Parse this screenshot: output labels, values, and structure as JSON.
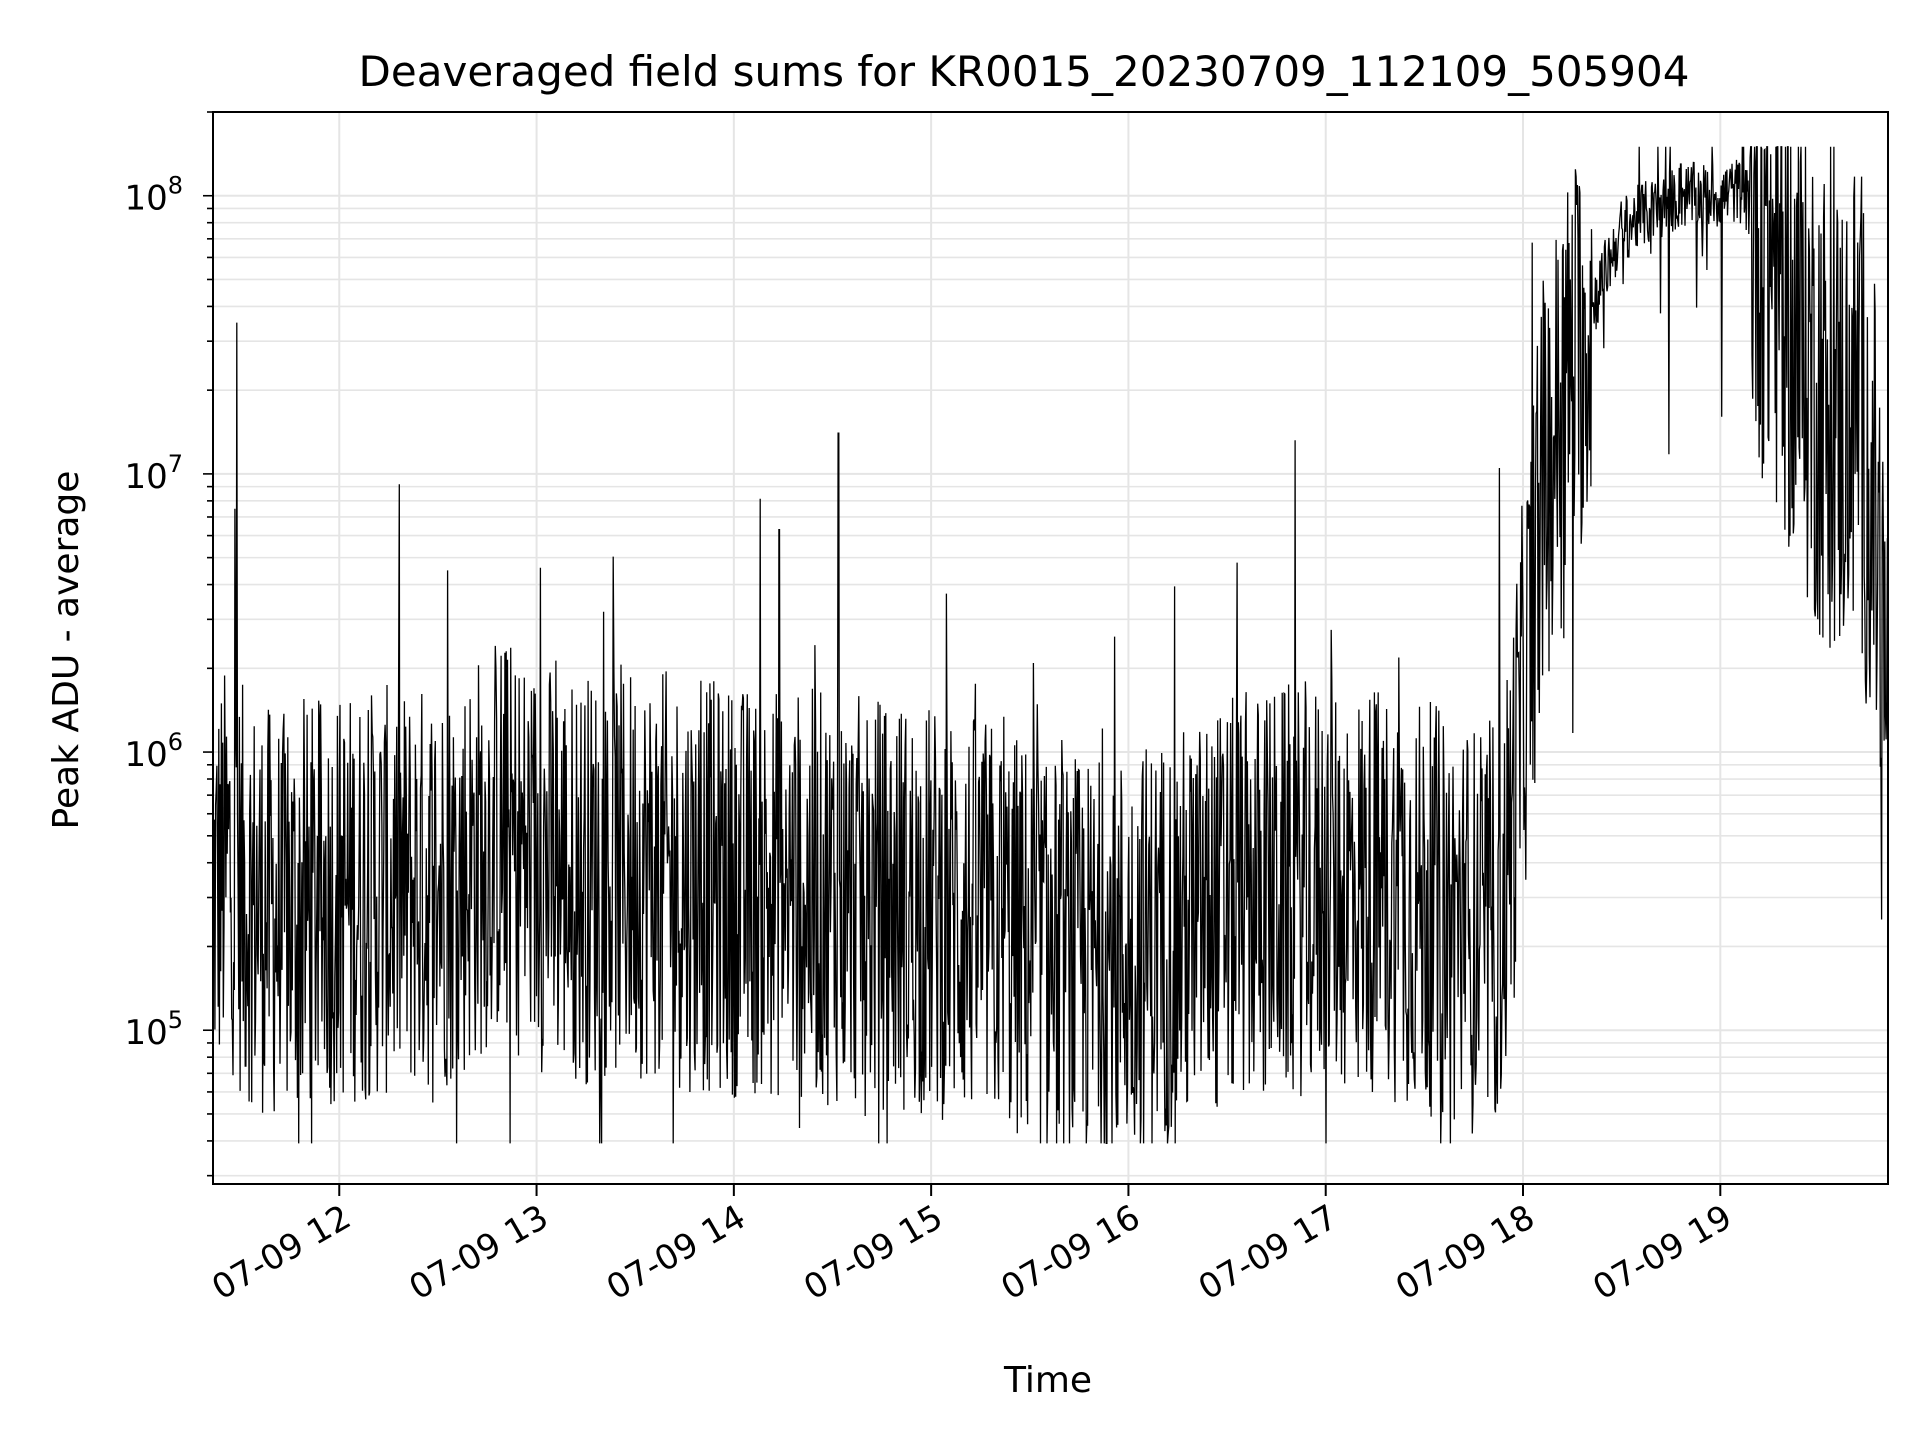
{
  "chart_data": {
    "type": "line",
    "title": "Deaveraged field sums for KR0015_20230709_112109_505904",
    "xlabel": "Time",
    "ylabel": "Peak ADU - average",
    "y_scale": "log",
    "ylim": [
      28000,
      200000000
    ],
    "x_start": "07-09 11:21",
    "x_end": "07-09 19:50",
    "xlim_hours": [
      11.36,
      19.85
    ],
    "x_ticks": [
      {
        "value": 12,
        "label": "07-09 12"
      },
      {
        "value": 13,
        "label": "07-09 13"
      },
      {
        "value": 14,
        "label": "07-09 14"
      },
      {
        "value": 15,
        "label": "07-09 15"
      },
      {
        "value": 16,
        "label": "07-09 16"
      },
      {
        "value": 17,
        "label": "07-09 17"
      },
      {
        "value": 18,
        "label": "07-09 18"
      },
      {
        "value": 19,
        "label": "07-09 19"
      }
    ],
    "y_ticks": [
      {
        "value": 100000,
        "base": "10",
        "exp": "5"
      },
      {
        "value": 1000000,
        "base": "10",
        "exp": "6"
      },
      {
        "value": 10000000,
        "base": "10",
        "exp": "7"
      },
      {
        "value": 100000000,
        "base": "10",
        "exp": "8"
      }
    ],
    "grid": true,
    "line_color": "#000000",
    "grid_color": "#e5e5e5",
    "series": [
      {
        "x_hours": [
          11.36,
          11.4,
          11.45,
          11.5,
          11.6,
          11.7,
          11.8,
          11.9,
          12.0,
          12.2,
          12.4,
          12.6,
          12.8,
          13.0,
          13.2,
          13.5,
          13.8,
          14.0,
          14.2,
          14.5,
          14.8,
          15.0,
          15.3,
          15.6,
          15.8,
          16.0,
          16.3,
          16.6,
          17.0,
          17.3,
          17.6,
          17.8,
          17.9,
          18.0,
          18.1,
          18.2,
          18.3,
          18.4,
          18.5,
          18.6,
          18.7,
          18.8,
          18.9,
          19.0,
          19.1,
          19.2,
          19.3,
          19.4,
          19.5,
          19.6,
          19.7,
          19.8,
          19.85
        ],
        "trend": [
          300000,
          350000,
          400000,
          320000,
          280000,
          250000,
          260000,
          280000,
          300000,
          310000,
          320000,
          350000,
          500000,
          400000,
          350000,
          380000,
          330000,
          320000,
          310000,
          300000,
          280000,
          270000,
          240000,
          180000,
          170000,
          190000,
          230000,
          300000,
          330000,
          320000,
          260000,
          220000,
          280000,
          1500000,
          8000000,
          20000000,
          30000000,
          50000000,
          75000000,
          85000000,
          90000000,
          100000000,
          100000000,
          100000000,
          105000000,
          80000000,
          50000000,
          30000000,
          20000000,
          15000000,
          20000000,
          5000000,
          1200000
        ],
        "spikes": [
          {
            "x": 11.48,
            "y": 35000000
          },
          {
            "x": 11.47,
            "y": 7500000
          },
          {
            "x": 14.53,
            "y": 14000000
          },
          {
            "x": 14.23,
            "y": 6300000
          },
          {
            "x": 17.88,
            "y": 10500000
          },
          {
            "x": 18.8,
            "y": 130000000
          },
          {
            "x": 19.05,
            "y": 125000000
          },
          {
            "x": 12.55,
            "y": 4500000
          },
          {
            "x": 13.02,
            "y": 4600000
          },
          {
            "x": 15.93,
            "y": 2600000
          },
          {
            "x": 16.55,
            "y": 4800000
          }
        ]
      }
    ]
  }
}
